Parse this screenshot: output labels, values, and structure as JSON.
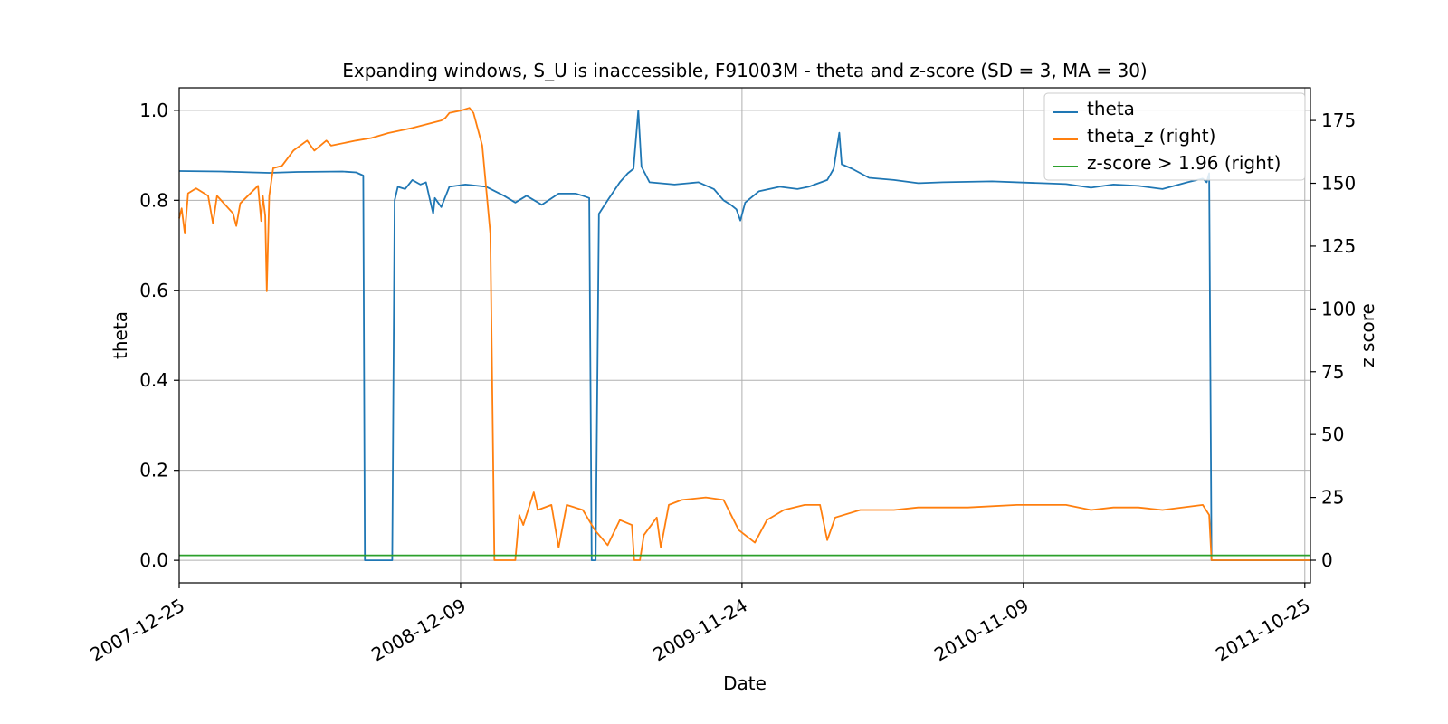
{
  "chart_data": {
    "type": "line",
    "title": "Expanding windows, S_U is inaccessible, F91003M - theta and z-score (SD = 3, MA = 30)",
    "xlabel": "Date",
    "ylabel": "theta",
    "y2label": "z score",
    "xlim": [
      "2007-12-25",
      "2011-11-01"
    ],
    "ylim": [
      -0.05,
      1.05
    ],
    "y2lim": [
      -9,
      188
    ],
    "x_ticks": [
      "2007-12-25",
      "2008-12-09",
      "2009-11-24",
      "2010-11-09",
      "2011-10-25"
    ],
    "y_ticks": [
      "0.0",
      "0.2",
      "0.4",
      "0.6",
      "0.8",
      "1.0"
    ],
    "y_tick_values": [
      0.0,
      0.2,
      0.4,
      0.6,
      0.8,
      1.0
    ],
    "y2_ticks": [
      "0",
      "25",
      "50",
      "75",
      "100",
      "125",
      "150",
      "175"
    ],
    "y2_tick_values": [
      0,
      25,
      50,
      75,
      100,
      125,
      150,
      175
    ],
    "grid": true,
    "legend_position": "top-right",
    "series": [
      {
        "name": "theta",
        "axis": "left",
        "color": "#1f77b4",
        "points": [
          [
            "2007-12-25",
            0.865
          ],
          [
            "2008-02-15",
            0.864
          ],
          [
            "2008-03-25",
            0.862
          ],
          [
            "2008-04-15",
            0.861
          ],
          [
            "2008-05-20",
            0.863
          ],
          [
            "2008-07-15",
            0.864
          ],
          [
            "2008-08-01",
            0.862
          ],
          [
            "2008-08-10",
            0.855
          ],
          [
            "2008-08-12",
            0.0
          ],
          [
            "2008-09-15",
            0.0
          ],
          [
            "2008-09-18",
            0.8
          ],
          [
            "2008-09-22",
            0.83
          ],
          [
            "2008-10-01",
            0.825
          ],
          [
            "2008-10-10",
            0.845
          ],
          [
            "2008-10-20",
            0.835
          ],
          [
            "2008-10-27",
            0.84
          ],
          [
            "2008-11-01",
            0.8
          ],
          [
            "2008-11-05",
            0.77
          ],
          [
            "2008-11-07",
            0.805
          ],
          [
            "2008-11-15",
            0.785
          ],
          [
            "2008-11-25",
            0.83
          ],
          [
            "2008-12-15",
            0.835
          ],
          [
            "2009-01-10",
            0.83
          ],
          [
            "2009-02-01",
            0.81
          ],
          [
            "2009-02-15",
            0.795
          ],
          [
            "2009-03-01",
            0.81
          ],
          [
            "2009-03-20",
            0.79
          ],
          [
            "2009-04-10",
            0.815
          ],
          [
            "2009-05-01",
            0.815
          ],
          [
            "2009-05-10",
            0.81
          ],
          [
            "2009-05-18",
            0.805
          ],
          [
            "2009-05-21",
            0.0
          ],
          [
            "2009-05-26",
            0.0
          ],
          [
            "2009-05-30",
            0.77
          ],
          [
            "2009-06-10",
            0.8
          ],
          [
            "2009-06-25",
            0.84
          ],
          [
            "2009-07-05",
            0.86
          ],
          [
            "2009-07-12",
            0.87
          ],
          [
            "2009-07-18",
            1.0
          ],
          [
            "2009-07-22",
            0.875
          ],
          [
            "2009-08-01",
            0.84
          ],
          [
            "2009-09-01",
            0.835
          ],
          [
            "2009-10-01",
            0.84
          ],
          [
            "2009-10-20",
            0.825
          ],
          [
            "2009-11-01",
            0.8
          ],
          [
            "2009-11-10",
            0.79
          ],
          [
            "2009-11-17",
            0.78
          ],
          [
            "2009-11-22",
            0.755
          ],
          [
            "2009-11-28",
            0.795
          ],
          [
            "2009-12-15",
            0.82
          ],
          [
            "2010-01-10",
            0.83
          ],
          [
            "2010-02-01",
            0.825
          ],
          [
            "2010-02-15",
            0.83
          ],
          [
            "2010-03-10",
            0.845
          ],
          [
            "2010-03-18",
            0.87
          ],
          [
            "2010-03-25",
            0.95
          ],
          [
            "2010-03-28",
            0.88
          ],
          [
            "2010-04-10",
            0.87
          ],
          [
            "2010-05-01",
            0.85
          ],
          [
            "2010-06-01",
            0.845
          ],
          [
            "2010-07-01",
            0.838
          ],
          [
            "2010-08-01",
            0.84
          ],
          [
            "2010-10-01",
            0.842
          ],
          [
            "2010-12-01",
            0.838
          ],
          [
            "2011-01-01",
            0.836
          ],
          [
            "2011-02-01",
            0.828
          ],
          [
            "2011-03-01",
            0.835
          ],
          [
            "2011-04-01",
            0.832
          ],
          [
            "2011-05-01",
            0.825
          ],
          [
            "2011-06-01",
            0.84
          ],
          [
            "2011-06-20",
            0.848
          ],
          [
            "2011-06-25",
            0.84
          ],
          [
            "2011-06-28",
            0.86
          ],
          [
            "2011-07-01",
            0.0
          ],
          [
            "2011-11-01",
            0.0
          ]
        ]
      },
      {
        "name": "theta_z (right)",
        "axis": "right",
        "color": "#ff7f0e",
        "points": [
          [
            "2007-12-25",
            136
          ],
          [
            "2007-12-28",
            140
          ],
          [
            "2008-01-01",
            130
          ],
          [
            "2008-01-05",
            146
          ],
          [
            "2008-01-15",
            148
          ],
          [
            "2008-01-30",
            145
          ],
          [
            "2008-02-05",
            134
          ],
          [
            "2008-02-10",
            145
          ],
          [
            "2008-03-01",
            138
          ],
          [
            "2008-03-05",
            133
          ],
          [
            "2008-03-10",
            142
          ],
          [
            "2008-04-01",
            149
          ],
          [
            "2008-04-05",
            135
          ],
          [
            "2008-04-07",
            145
          ],
          [
            "2008-04-10",
            137
          ],
          [
            "2008-04-12",
            107
          ],
          [
            "2008-04-15",
            145
          ],
          [
            "2008-04-20",
            156
          ],
          [
            "2008-05-01",
            157
          ],
          [
            "2008-05-15",
            163
          ],
          [
            "2008-06-01",
            167
          ],
          [
            "2008-06-10",
            163
          ],
          [
            "2008-06-25",
            167
          ],
          [
            "2008-07-01",
            165
          ],
          [
            "2008-08-01",
            167
          ],
          [
            "2008-08-20",
            168
          ],
          [
            "2008-09-10",
            170
          ],
          [
            "2008-10-10",
            172
          ],
          [
            "2008-11-15",
            175
          ],
          [
            "2008-11-20",
            176
          ],
          [
            "2008-11-25",
            178
          ],
          [
            "2008-12-10",
            179
          ],
          [
            "2008-12-20",
            180
          ],
          [
            "2008-12-25",
            178
          ],
          [
            "2009-01-05",
            165
          ],
          [
            "2009-01-15",
            130
          ],
          [
            "2009-01-20",
            0
          ],
          [
            "2009-02-15",
            0
          ],
          [
            "2009-02-20",
            18
          ],
          [
            "2009-02-25",
            14
          ],
          [
            "2009-03-10",
            27
          ],
          [
            "2009-03-15",
            20
          ],
          [
            "2009-04-01",
            22
          ],
          [
            "2009-04-10",
            5
          ],
          [
            "2009-04-20",
            22
          ],
          [
            "2009-05-10",
            20
          ],
          [
            "2009-05-25",
            12
          ],
          [
            "2009-06-10",
            6
          ],
          [
            "2009-06-25",
            16
          ],
          [
            "2009-07-10",
            14
          ],
          [
            "2009-07-13",
            0
          ],
          [
            "2009-07-20",
            0
          ],
          [
            "2009-07-25",
            10
          ],
          [
            "2009-08-10",
            17
          ],
          [
            "2009-08-15",
            5
          ],
          [
            "2009-08-25",
            22
          ],
          [
            "2009-09-10",
            24
          ],
          [
            "2009-10-10",
            25
          ],
          [
            "2009-11-01",
            24
          ],
          [
            "2009-11-20",
            12
          ],
          [
            "2009-12-10",
            7
          ],
          [
            "2009-12-25",
            16
          ],
          [
            "2010-01-15",
            20
          ],
          [
            "2010-02-10",
            22
          ],
          [
            "2010-03-01",
            22
          ],
          [
            "2010-03-10",
            8
          ],
          [
            "2010-03-20",
            17
          ],
          [
            "2010-04-20",
            20
          ],
          [
            "2010-06-01",
            20
          ],
          [
            "2010-07-01",
            21
          ],
          [
            "2010-09-01",
            21
          ],
          [
            "2010-11-01",
            22
          ],
          [
            "2011-01-01",
            22
          ],
          [
            "2011-02-01",
            20
          ],
          [
            "2011-03-01",
            21
          ],
          [
            "2011-04-01",
            21
          ],
          [
            "2011-05-01",
            20
          ],
          [
            "2011-06-20",
            22
          ],
          [
            "2011-06-28",
            18
          ],
          [
            "2011-07-01",
            0
          ],
          [
            "2011-11-01",
            0
          ]
        ]
      },
      {
        "name": "z-score > 1.96 (right)",
        "axis": "right",
        "color": "#2ca02c",
        "points": [
          [
            "2007-12-25",
            1.96
          ],
          [
            "2011-11-01",
            1.96
          ]
        ]
      }
    ]
  }
}
